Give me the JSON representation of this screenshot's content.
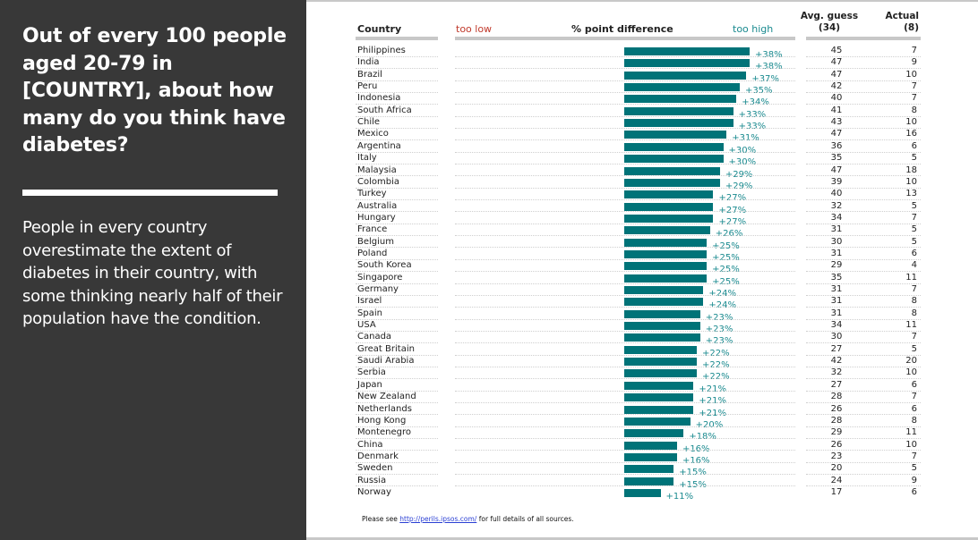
{
  "left_panel": {
    "headline": "Out of every 100 people aged 20-79 in [COUNTRY], about how many do you think have diabetes?",
    "body": "People in every country overestimate the extent of diabetes in their country, with some thinking nearly half of their population have the condition."
  },
  "table_header": {
    "country": "Country",
    "too_low": "too low",
    "difference": "% point difference",
    "too_high": "too high",
    "avg_guess": "Avg. guess",
    "avg_guess_overall": "(34)",
    "actual": "Actual",
    "actual_overall": "(8)"
  },
  "colors": {
    "bar": "#007378",
    "too_low": "#c0392b",
    "too_high": "#1a8a8f",
    "panel": "#383838"
  },
  "footnote": {
    "prefix": "Please see ",
    "link": "http://perils.ipsos.com/",
    "suffix": " for full details of all sources."
  },
  "chart_data": {
    "type": "bar",
    "orientation": "horizontal",
    "title": "% point difference",
    "xlabel_left": "too low",
    "xlabel_right": "too high",
    "value_format": "+N%",
    "categories": [
      "Philippines",
      "India",
      "Brazil",
      "Peru",
      "Indonesia",
      "South Africa",
      "Chile",
      "Mexico",
      "Argentina",
      "Italy",
      "Malaysia",
      "Colombia",
      "Turkey",
      "Australia",
      "Hungary",
      "France",
      "Belgium",
      "Poland",
      "South Korea",
      "Singapore",
      "Germany",
      "Israel",
      "Spain",
      "USA",
      "Canada",
      "Great Britain",
      "Saudi Arabia",
      "Serbia",
      "Japan",
      "New Zealand",
      "Netherlands",
      "Hong Kong",
      "Montenegro",
      "China",
      "Denmark",
      "Sweden",
      "Russia",
      "Norway"
    ],
    "values": [
      38,
      38,
      37,
      35,
      34,
      33,
      33,
      31,
      30,
      30,
      29,
      29,
      27,
      27,
      27,
      26,
      25,
      25,
      25,
      25,
      24,
      24,
      23,
      23,
      23,
      22,
      22,
      22,
      21,
      21,
      21,
      20,
      18,
      16,
      16,
      15,
      15,
      11
    ],
    "labels": [
      "+38%",
      "+38%",
      "+37%",
      "+35%",
      "+34%",
      "+33%",
      "+33%",
      "+31%",
      "+30%",
      "+30%",
      "+29%",
      "+29%",
      "+27%",
      "+27%",
      "+27%",
      "+26%",
      "+25%",
      "+25%",
      "+25%",
      "+25%",
      "+24%",
      "+24%",
      "+23%",
      "+23%",
      "+23%",
      "+22%",
      "+22%",
      "+22%",
      "+21%",
      "+21%",
      "+21%",
      "+20%",
      "+18%",
      "+16%",
      "+16%",
      "+15%",
      "+15%",
      "+11%"
    ],
    "avg_guess": [
      45,
      47,
      47,
      42,
      40,
      41,
      43,
      47,
      36,
      35,
      47,
      39,
      40,
      32,
      34,
      31,
      30,
      31,
      29,
      35,
      31,
      31,
      31,
      34,
      30,
      27,
      42,
      32,
      27,
      28,
      26,
      28,
      29,
      26,
      23,
      20,
      24,
      17
    ],
    "actual": [
      7,
      9,
      10,
      7,
      7,
      8,
      10,
      16,
      6,
      5,
      18,
      10,
      13,
      5,
      7,
      5,
      5,
      6,
      4,
      11,
      7,
      8,
      8,
      11,
      7,
      5,
      20,
      10,
      6,
      7,
      6,
      8,
      11,
      10,
      7,
      5,
      9,
      6
    ],
    "xlim": [
      -40,
      40
    ]
  }
}
